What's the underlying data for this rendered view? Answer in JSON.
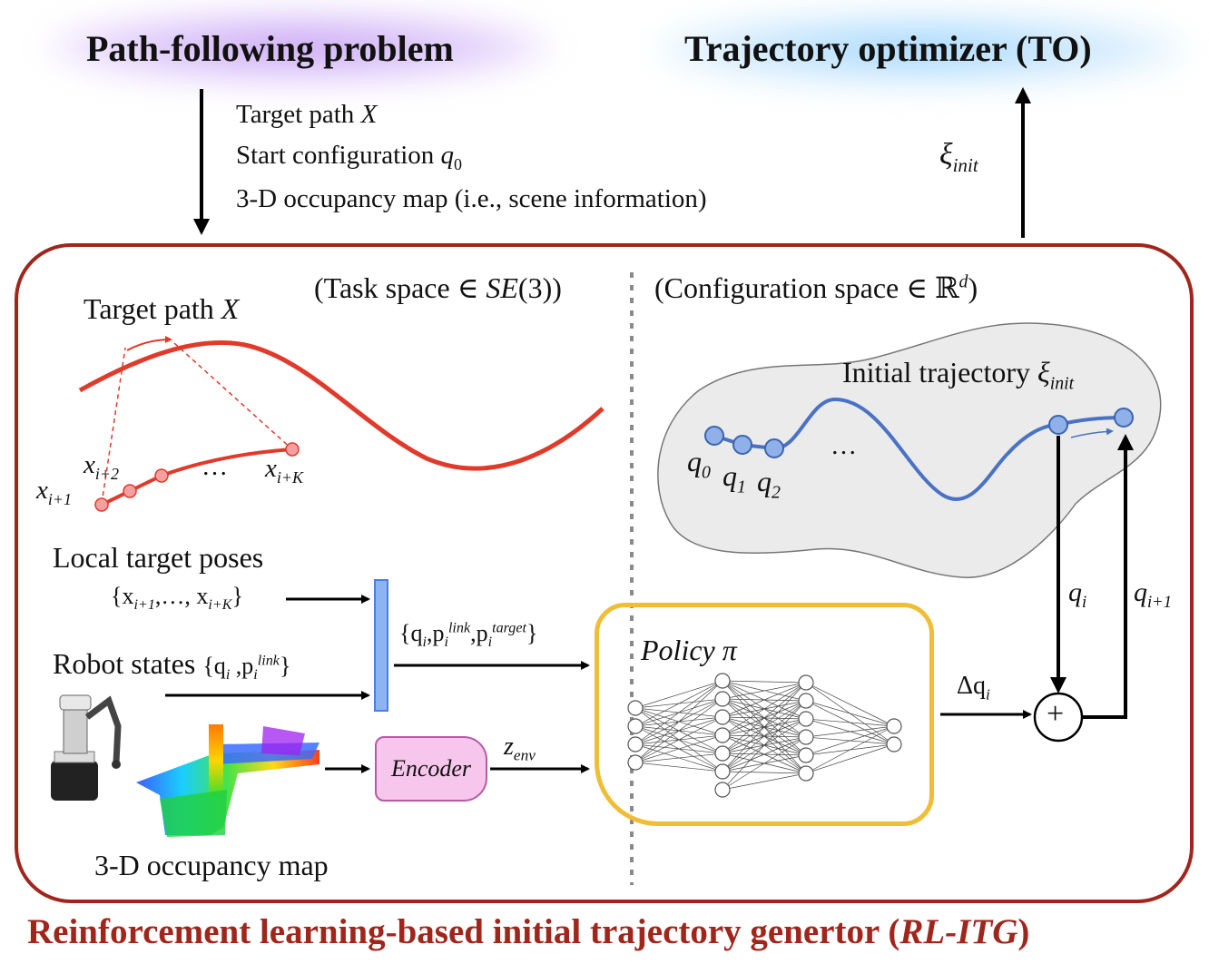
{
  "header": {
    "left_title": "Path-following problem",
    "right_title": "Trajectory optimizer (TO)"
  },
  "inputs": {
    "line1": "Target path",
    "line1_sym": "X",
    "line2": "Start configuration",
    "line2_sym": "q",
    "line2_sub": "0",
    "line3": "3-D occupancy map (i.e., scene information)"
  },
  "output": {
    "sym": "ξ",
    "sub": "init"
  },
  "task_space": {
    "label_prefix": "(Task space ∈ ",
    "label_math": "SE",
    "label_suffix": "(3))",
    "target_path_label": "Target path",
    "target_path_sym": "X",
    "pt_i1": "i+1",
    "pt_i2": "i+2",
    "pt_iK": "i+K",
    "x_sym": "x",
    "dots": "…"
  },
  "config_space": {
    "label_prefix": "(Configuration space ∈ ℝ",
    "label_sup": "d",
    "label_suffix": ")",
    "init_traj_label": "Initial trajectory",
    "init_traj_sym": "ξ",
    "init_traj_sub": "init",
    "q_sym": "q",
    "q0_sub": "0",
    "q1_sub": "1",
    "q2_sub": "2",
    "dots": "…"
  },
  "inputs_block": {
    "local_target_label": "Local target poses",
    "local_target_set": "{x",
    "local_target_sub1": "i+1",
    "local_target_mid": ",…, x",
    "local_target_sub2": "i+K",
    "local_target_close": "}",
    "robot_states_label": "Robot states",
    "robot_states_set": "{q",
    "robot_states_sub": "i",
    "robot_states_mid": " ,p",
    "robot_states_sub2": "i",
    "robot_states_sup2": "link",
    "robot_states_close": "}",
    "occupancy_label": "3-D occupancy map"
  },
  "concat": {
    "open": "{q",
    "sub1": "i",
    "mid1": ",p",
    "sub2": "i",
    "sup2": "link",
    "mid2": ",p",
    "sub3": "i",
    "sup3": "target",
    "close": "}"
  },
  "encoder": {
    "label": "Encoder",
    "z": "z",
    "z_sub": "env"
  },
  "policy": {
    "label": "Policy π"
  },
  "update": {
    "dq": "Δq",
    "dq_sub": "i",
    "qi": "q",
    "qi_sub": "i",
    "qi1": "q",
    "qi1_sub": "i+1",
    "plus": "+"
  },
  "footer": {
    "text": "Reinforcement learning-based initial trajectory genertor (",
    "abbr": "RL-ITG",
    "close": ")"
  },
  "colors": {
    "frame": "#a0261c",
    "path_red": "#e03a2a",
    "traj_blue": "#4a72c4",
    "policy_border": "#efbd36",
    "encoder_fill": "#f6c6ec"
  }
}
